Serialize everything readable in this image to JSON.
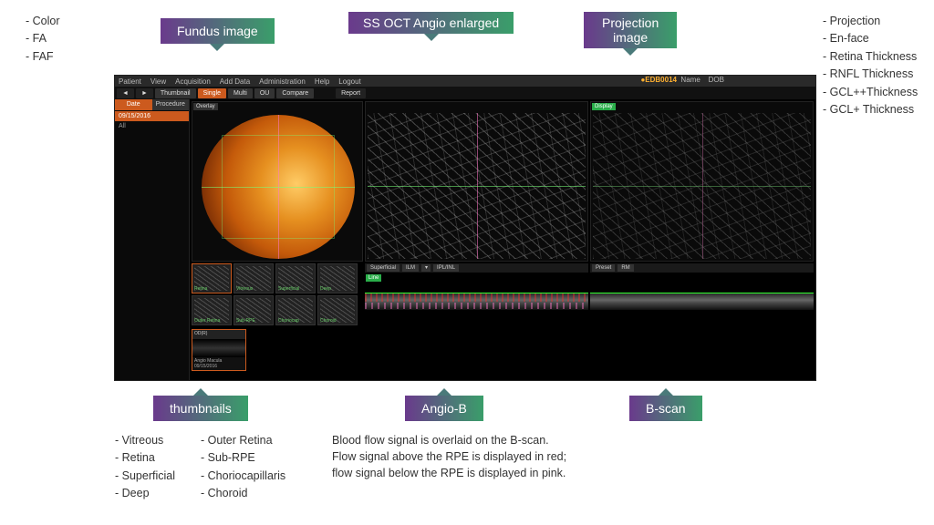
{
  "tags": {
    "fundus": "Fundus image",
    "angio_enlarged": "SS OCT Angio enlarged",
    "projection": "Projection image",
    "thumbnails": "thumbnails",
    "angio_b": "Angio-B",
    "bscan": "B-scan"
  },
  "bullets": {
    "fundus_modes": [
      "Color",
      "FA",
      "FAF"
    ],
    "projection_modes": [
      "Projection",
      "En-face",
      "Retina Thickness",
      "RNFL Thickness",
      "GCL++Thickness",
      "GCL+ Thickness"
    ],
    "thumbs_col1": [
      "Vitreous",
      "Retina",
      "Superficial",
      "Deep"
    ],
    "thumbs_col2": [
      "Outer Retina",
      "Sub-RPE",
      "Choriocapillaris",
      "Choroid"
    ]
  },
  "angio_b_desc": [
    "Blood flow signal is overlaid on the B-scan.",
    "Flow signal above the RPE is displayed in red;",
    "flow signal below the RPE is displayed in pink."
  ],
  "menu": {
    "items": [
      "Patient",
      "View",
      "Acquisition",
      "Add Data",
      "Administration",
      "Help",
      "Logout"
    ]
  },
  "patient": {
    "icon": "●",
    "id": "EDB0014",
    "name_label": "Name",
    "dob_label": "DOB"
  },
  "toolbar": {
    "thumbnail": "Thumbnail",
    "single": "Single",
    "multi": "Multi",
    "ou": "OU",
    "compare": "Compare",
    "report": "Report"
  },
  "side": {
    "tab_date": "Date",
    "tab_proc": "Procedure",
    "date": "09/15/2016",
    "all": "All"
  },
  "fundus_panel": {
    "overlay": "Overlay"
  },
  "proj_panel": {
    "display": "Display"
  },
  "thumbs": [
    "Retina",
    "Vitreous",
    "Superficial",
    "Deep",
    "Outer Retina",
    "Sub-RPE",
    "Choriocap",
    "Choroid"
  ],
  "angio_ctrl": {
    "layer": "Superficial",
    "from": "ILM",
    "to": "IPL/INL",
    "line": "Line"
  },
  "bscan_ctrl": {
    "preset": "Preset",
    "rm": "RM"
  },
  "strip": {
    "hdr": "OD(R)",
    "title": "Angio Macula",
    "date": "09/15/2016"
  },
  "colors": {
    "accent": "#cc5a1e",
    "green": "#2aae4a",
    "pink": "#ff78c8",
    "red": "#ff2828"
  }
}
